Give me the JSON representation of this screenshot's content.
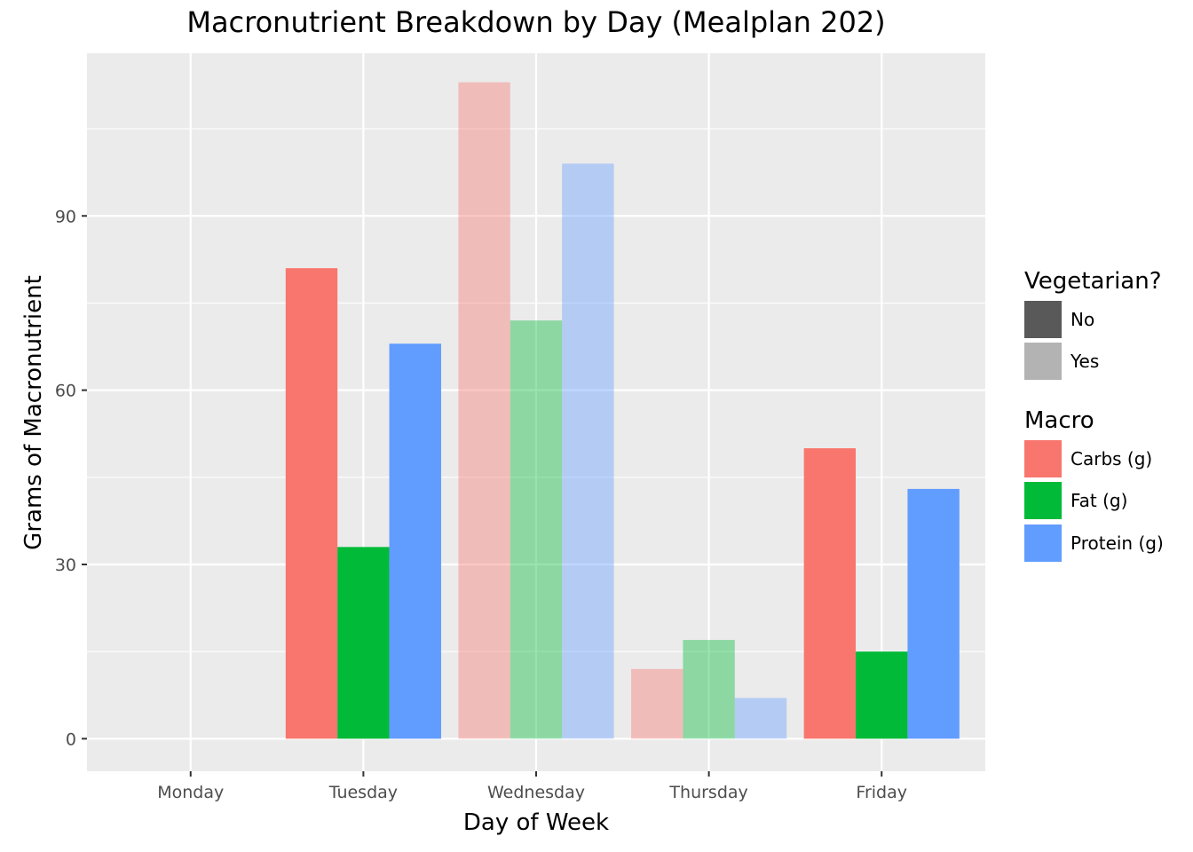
{
  "chart_data": {
    "type": "bar",
    "title": "Macronutrient Breakdown by Day (Mealplan 202)",
    "xlabel": "Day of Week",
    "ylabel": "Grams of Macronutrient",
    "categories": [
      "Monday",
      "Tuesday",
      "Wednesday",
      "Thursday",
      "Friday"
    ],
    "y_ticks": [
      0,
      30,
      60,
      90
    ],
    "ylim": [
      -5.6,
      118.0
    ],
    "grid": true,
    "legend_position": "right",
    "series": [
      {
        "name": "Carbs (g)",
        "color": "#F8766D",
        "values": [
          0,
          81,
          113,
          12,
          50
        ]
      },
      {
        "name": "Fat (g)",
        "color": "#00BA38",
        "values": [
          0,
          33,
          72,
          17,
          15
        ]
      },
      {
        "name": "Protein (g)",
        "color": "#619CFF",
        "values": [
          0,
          68,
          99,
          7,
          43
        ]
      }
    ],
    "vegetarian": [
      "No",
      "No",
      "Yes",
      "Yes",
      "No"
    ],
    "legend_vegetarian": {
      "title": "Vegetarian?",
      "items": [
        {
          "label": "No",
          "color": "#595959"
        },
        {
          "label": "Yes",
          "color": "#B3B3B3"
        }
      ]
    },
    "legend_macro": {
      "title": "Macro",
      "items": [
        {
          "label": "Carbs (g)",
          "color": "#F8766D"
        },
        {
          "label": "Fat (g)",
          "color": "#00BA38"
        },
        {
          "label": "Protein (g)",
          "color": "#619CFF"
        }
      ]
    },
    "alpha_by_vegetarian": {
      "No": 1.0,
      "Yes": 0.4
    },
    "panel_background": "#EBEBEB",
    "grid_color": "#FFFFFF",
    "tick_label_color": "#4D4D4D"
  }
}
